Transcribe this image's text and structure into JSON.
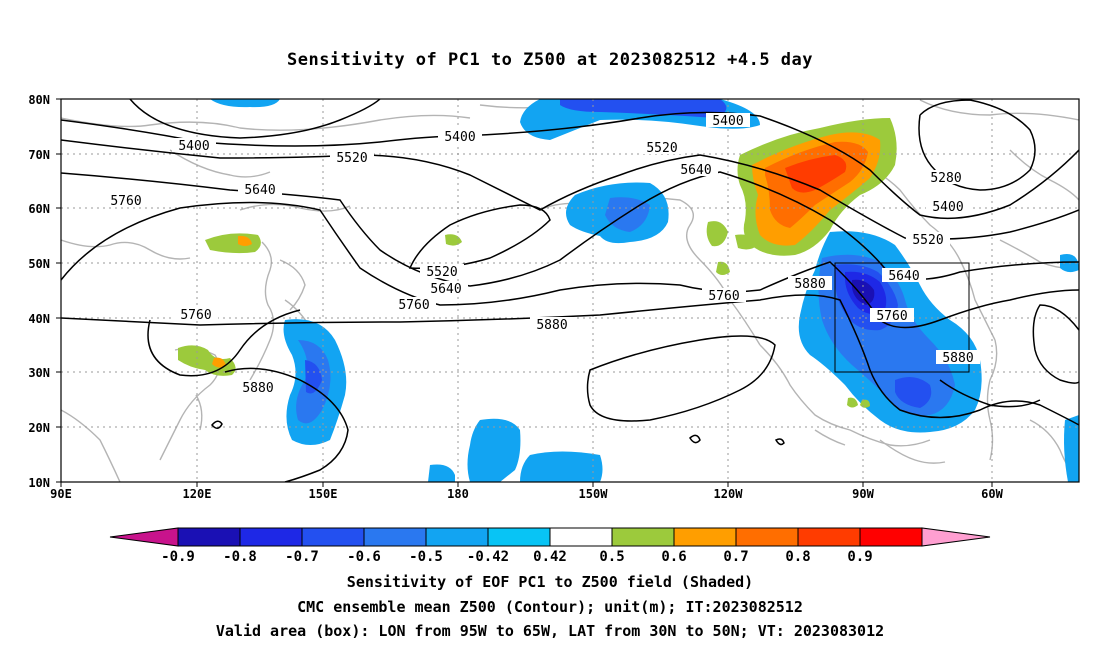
{
  "title": "Sensitivity of PC1 to Z500 at 2023082512 +4.5 day",
  "lat_ticks": [
    "80N",
    "70N",
    "60N",
    "50N",
    "40N",
    "30N",
    "20N",
    "10N"
  ],
  "lon_ticks": [
    "90E",
    "120E",
    "150E",
    "180",
    "150W",
    "120W",
    "90W",
    "60W"
  ],
  "colorbar": {
    "labels": [
      "-0.9",
      "-0.8",
      "-0.7",
      "-0.6",
      "-0.5",
      "-0.42",
      "0.42",
      "0.5",
      "0.6",
      "0.7",
      "0.8",
      "0.9"
    ],
    "colors": [
      "#c8138c",
      "#1a10b4",
      "#1e28e6",
      "#2350f0",
      "#2a78f0",
      "#12a4f2",
      "#08c4f5",
      "#ffffff",
      "#9cca3c",
      "#ff9e00",
      "#ff6e00",
      "#ff3c00",
      "#ff0000",
      "#ff9fd1"
    ]
  },
  "contour_labels": [
    "5400",
    "5400",
    "5400",
    "5400",
    "5520",
    "5520",
    "5520",
    "5520",
    "5640",
    "5640",
    "5640",
    "5640",
    "5760",
    "5760",
    "5760",
    "5760",
    "5760",
    "5880",
    "5880",
    "5880",
    "5880",
    "5280"
  ],
  "valid_box": {
    "lon_from": "95W",
    "lon_to": "65W",
    "lat_from": "30N",
    "lat_to": "50N"
  },
  "footer": {
    "line1": "Sensitivity of EOF PC1 to Z500 field (Shaded)",
    "line2": "CMC ensemble mean Z500 (Contour); unit(m); IT:2023082512",
    "line3": "Valid area (box): LON from 95W to 65W, LAT from 30N to 50N; VT: 2023083012"
  }
}
